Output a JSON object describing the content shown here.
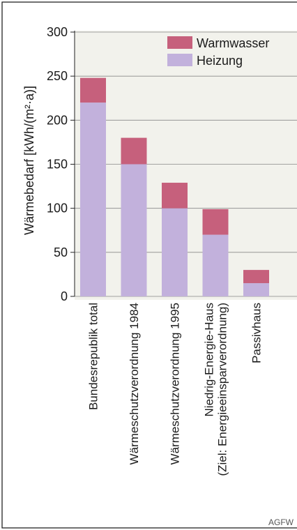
{
  "chart_data": {
    "type": "bar",
    "stacked": true,
    "categories": [
      "Bundesrepublik total",
      "Wärmeschutzverordnung 1984",
      "Wärmeschutzverordnung 1995",
      [
        "Niedrig-Energie-Haus",
        "(Ziel: Energieeinsparverordnung)"
      ],
      "Passivhaus"
    ],
    "series": [
      {
        "name": "Heizung",
        "values": [
          220,
          150,
          100,
          70,
          15
        ]
      },
      {
        "name": "Warmwasser",
        "values": [
          28,
          30,
          29,
          29,
          15
        ]
      }
    ],
    "ylabel": "Wärmebedarf [kWh/(m²·a)]",
    "xlabel": "",
    "ylim": [
      0,
      300
    ],
    "yticks": [
      0,
      50,
      100,
      150,
      200,
      250,
      300
    ],
    "grid": true,
    "legend_position": "top-right",
    "colors": {
      "Heizung": "#c2b1dc",
      "Warmwasser": "#c6607c",
      "plot_background": "#f2f2ec",
      "frame_border": "#222222",
      "gridline": "#888888"
    }
  },
  "source_label": "AGFW"
}
